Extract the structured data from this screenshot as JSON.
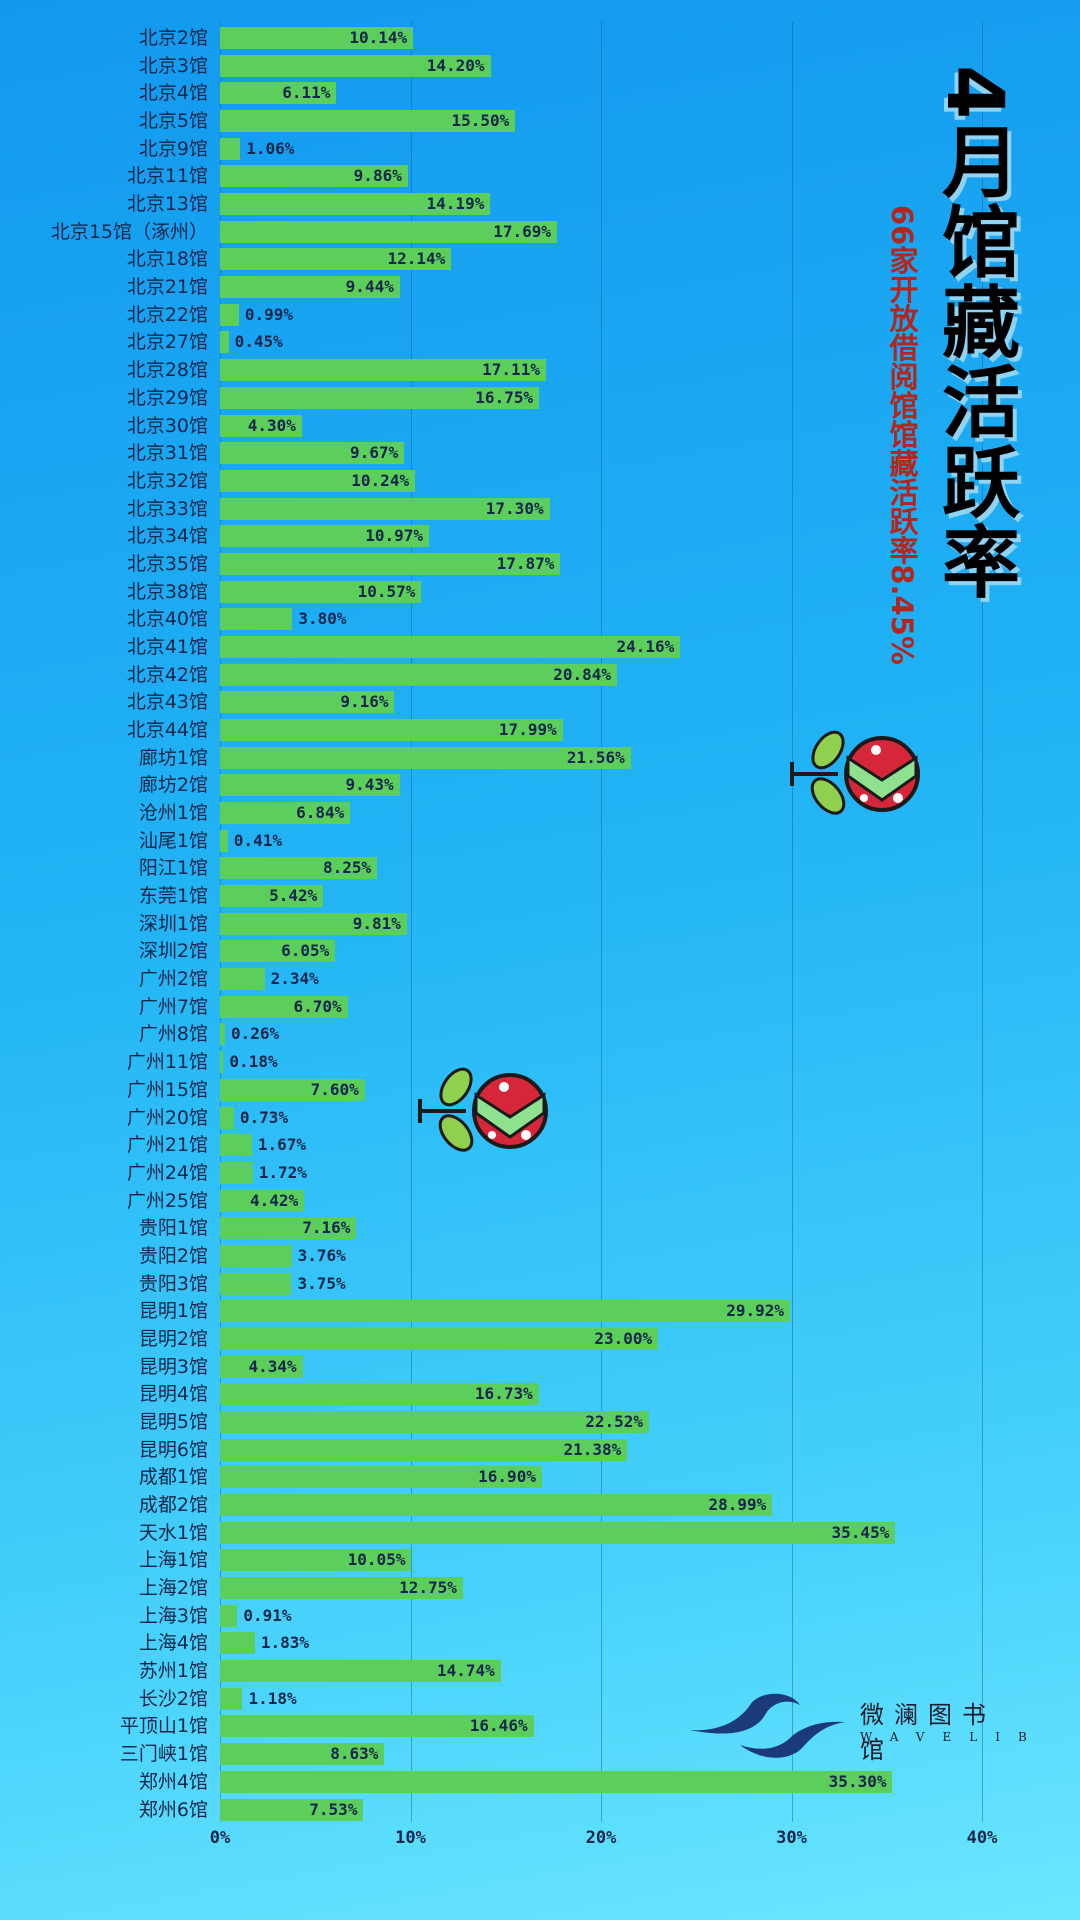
{
  "title": "4月馆藏活跃率",
  "subtitle": "66家开放借阅馆馆藏活跃率8.45%",
  "logo": {
    "cn": "微澜图书馆",
    "en": "WAVELIB"
  },
  "colors": {
    "bar": "#5cce5c",
    "title": "#000000",
    "subtitle": "#b3261e",
    "text": "#14264a"
  },
  "chart_data": {
    "type": "bar",
    "orientation": "horizontal",
    "title": "4月馆藏活跃率",
    "xlabel": "",
    "ylabel": "",
    "xlim": [
      0,
      40
    ],
    "xticks": [
      "0%",
      "10%",
      "20%",
      "30%",
      "40%"
    ],
    "grid": true,
    "categories": [
      "北京2馆",
      "北京3馆",
      "北京4馆",
      "北京5馆",
      "北京9馆",
      "北京11馆",
      "北京13馆",
      "北京15馆（涿州）",
      "北京18馆",
      "北京21馆",
      "北京22馆",
      "北京27馆",
      "北京28馆",
      "北京29馆",
      "北京30馆",
      "北京31馆",
      "北京32馆",
      "北京33馆",
      "北京34馆",
      "北京35馆",
      "北京38馆",
      "北京40馆",
      "北京41馆",
      "北京42馆",
      "北京43馆",
      "北京44馆",
      "廊坊1馆",
      "廊坊2馆",
      "沧州1馆",
      "汕尾1馆",
      "阳江1馆",
      "东莞1馆",
      "深圳1馆",
      "深圳2馆",
      "广州2馆",
      "广州7馆",
      "广州8馆",
      "广州11馆",
      "广州15馆",
      "广州20馆",
      "广州21馆",
      "广州24馆",
      "广州25馆",
      "贵阳1馆",
      "贵阳2馆",
      "贵阳3馆",
      "昆明1馆",
      "昆明2馆",
      "昆明3馆",
      "昆明4馆",
      "昆明5馆",
      "昆明6馆",
      "成都1馆",
      "成都2馆",
      "天水1馆",
      "上海1馆",
      "上海2馆",
      "上海3馆",
      "上海4馆",
      "苏州1馆",
      "长沙2馆",
      "平顶山1馆",
      "三门峡1馆",
      "郑州4馆",
      "郑州6馆"
    ],
    "values": [
      10.14,
      14.2,
      6.11,
      15.5,
      1.06,
      9.86,
      14.19,
      17.69,
      12.14,
      9.44,
      0.99,
      0.45,
      17.11,
      16.75,
      4.3,
      9.67,
      10.24,
      17.3,
      10.97,
      17.87,
      10.57,
      3.8,
      24.16,
      20.84,
      9.16,
      17.99,
      21.56,
      9.43,
      6.84,
      0.41,
      8.25,
      5.42,
      9.81,
      6.05,
      2.34,
      6.7,
      0.26,
      0.18,
      7.6,
      0.73,
      1.67,
      1.72,
      4.42,
      7.16,
      3.76,
      3.75,
      29.92,
      23.0,
      4.34,
      16.73,
      22.52,
      21.38,
      16.9,
      28.99,
      35.45,
      10.05,
      12.75,
      0.91,
      1.83,
      14.74,
      1.18,
      16.46,
      8.63,
      35.3,
      7.53
    ],
    "labels": [
      "10.14%",
      "14.20%",
      "6.11%",
      "15.50%",
      "1.06%",
      "9.86%",
      "14.19%",
      "17.69%",
      "12.14%",
      "9.44%",
      "0.99%",
      "0.45%",
      "17.11%",
      "16.75%",
      "4.30%",
      "9.67%",
      "10.24%",
      "17.30%",
      "10.97%",
      "17.87%",
      "10.57%",
      "3.80%",
      "24.16%",
      "20.84%",
      "9.16%",
      "17.99%",
      "21.56%",
      "9.43%",
      "6.84%",
      "0.41%",
      "8.25%",
      "5.42%",
      "9.81%",
      "6.05%",
      "2.34%",
      "6.70%",
      "0.26%",
      "0.18%",
      "7.60%",
      "0.73%",
      "1.67%",
      "1.72%",
      "4.42%",
      "7.16%",
      "3.76%",
      "3.75%",
      "29.92%",
      "23.00%",
      "4.34%",
      "16.73%",
      "22.52%",
      "21.38%",
      "16.90%",
      "28.99%",
      "35.45%",
      "10.05%",
      "12.75%",
      "0.91%",
      "1.83%",
      "14.74%",
      "1.18%",
      "16.46%",
      "8.63%",
      "35.30%",
      "7.53%"
    ]
  }
}
